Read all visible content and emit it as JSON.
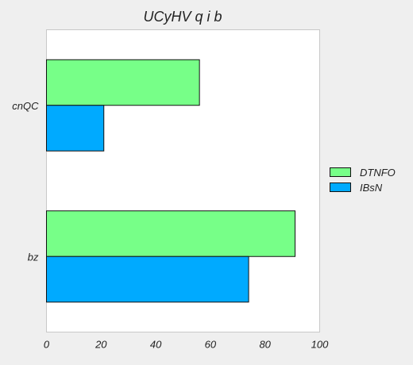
{
  "chart_data": {
    "type": "bar",
    "orientation": "horizontal",
    "title": "UCyHV q i b",
    "xlabel": "",
    "ylabel": "",
    "xlim": [
      0,
      100
    ],
    "x_ticks": [
      "0",
      "20",
      "40",
      "60",
      "80",
      "100"
    ],
    "categories": [
      "cnQC",
      "bz"
    ],
    "series": [
      {
        "name": "DTNFO",
        "color": "#77ff88",
        "values": [
          56,
          91
        ]
      },
      {
        "name": "IBsN",
        "color": "#00aaff",
        "values": [
          21,
          74
        ]
      }
    ],
    "legend_position": "right",
    "grid": false
  }
}
